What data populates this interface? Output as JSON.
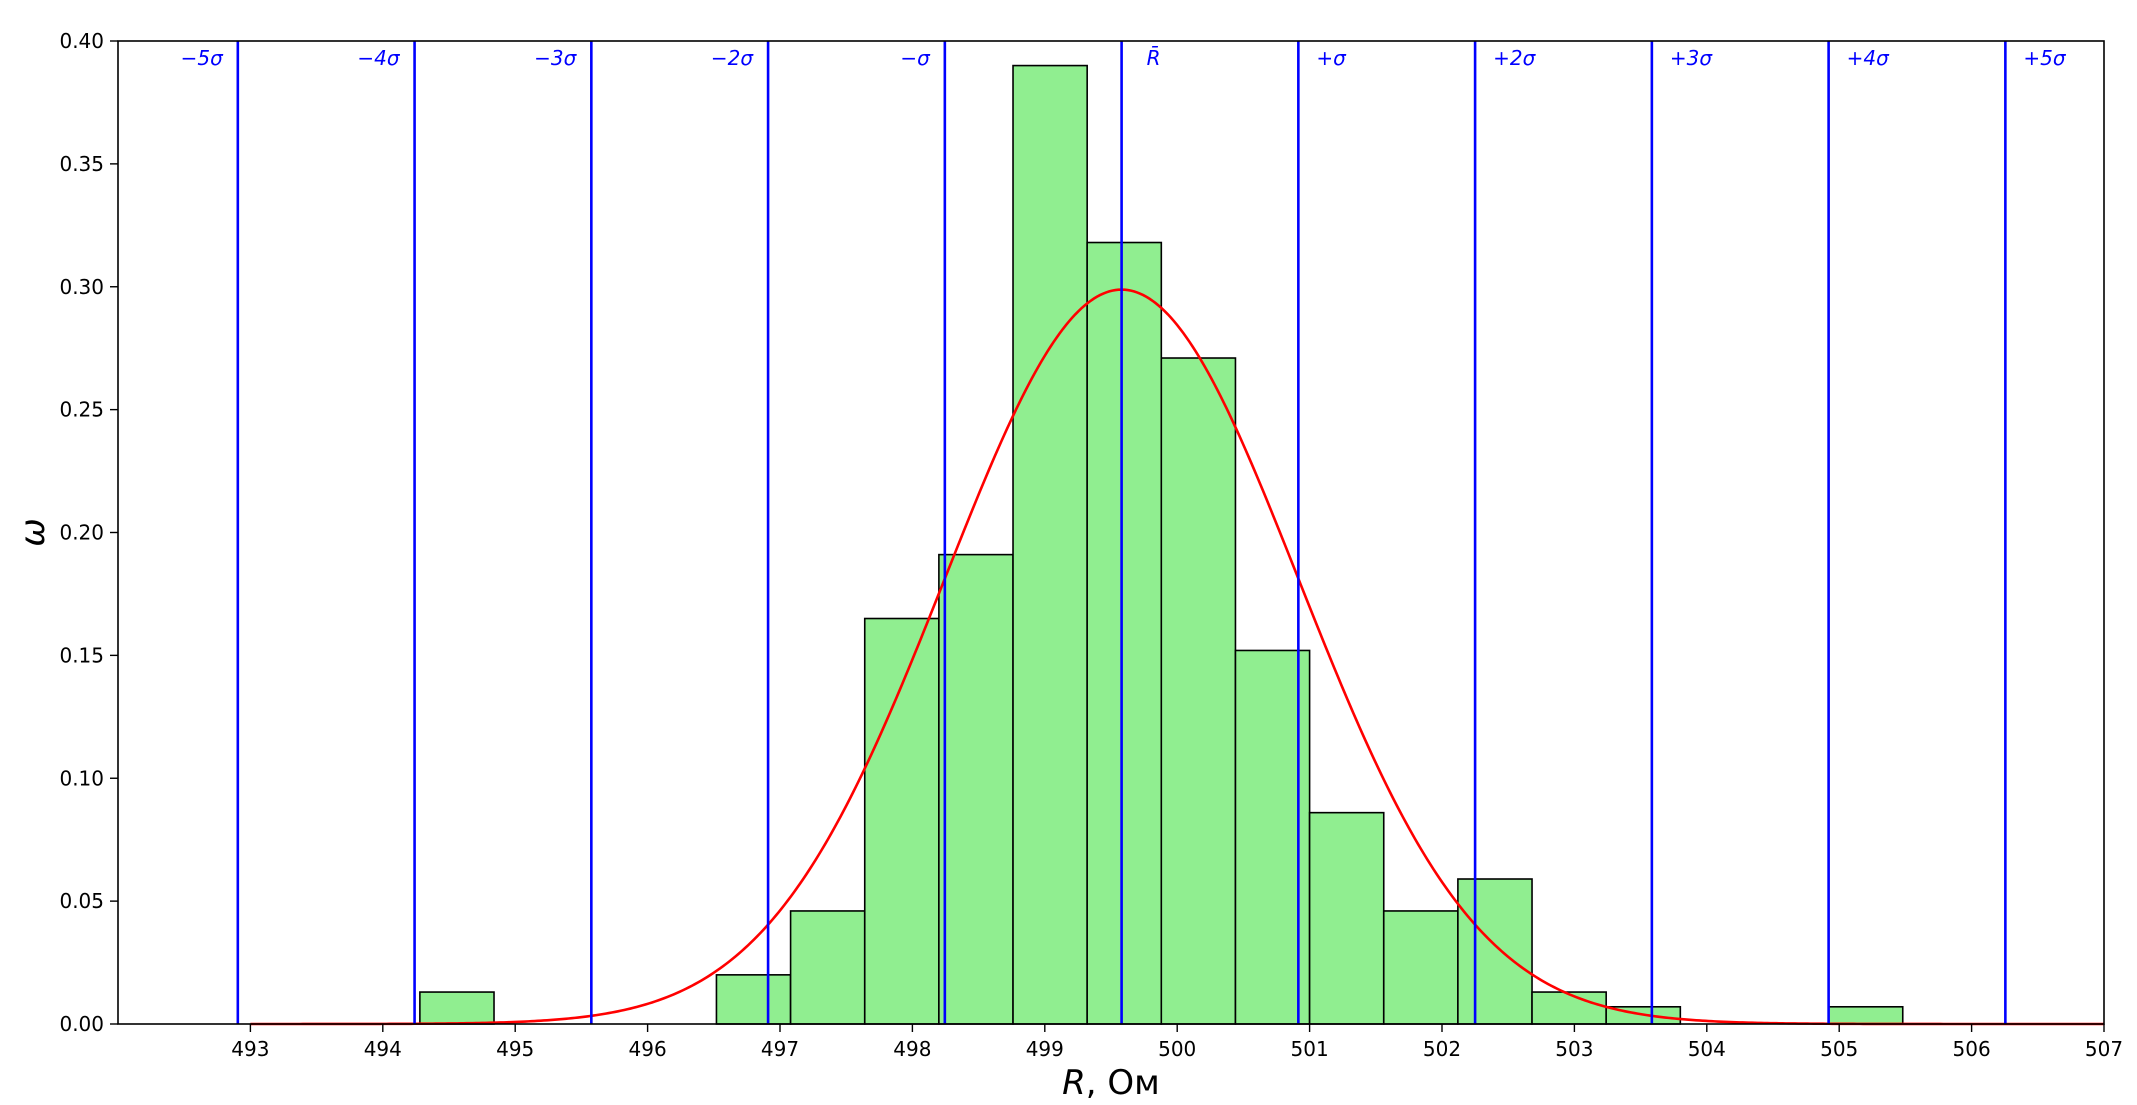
{
  "chart_data": {
    "type": "bar",
    "xlabel": "R, Ом",
    "ylabel": "ω",
    "xlim": [
      492,
      507
    ],
    "ylim": [
      0,
      0.4
    ],
    "grid": false,
    "x_ticks": [
      493,
      494,
      495,
      496,
      497,
      498,
      499,
      500,
      501,
      502,
      503,
      504,
      505,
      506,
      507
    ],
    "y_ticks": [
      "0.00",
      "0.05",
      "0.10",
      "0.15",
      "0.20",
      "0.25",
      "0.30",
      "0.35",
      "0.40"
    ],
    "histogram": {
      "bin_width": 0.56,
      "bins": [
        {
          "left": 494.28,
          "value": 0.013
        },
        {
          "left": 496.52,
          "value": 0.02
        },
        {
          "left": 497.08,
          "value": 0.046
        },
        {
          "left": 497.64,
          "value": 0.165
        },
        {
          "left": 498.2,
          "value": 0.191
        },
        {
          "left": 498.76,
          "value": 0.39
        },
        {
          "left": 499.32,
          "value": 0.318
        },
        {
          "left": 499.88,
          "value": 0.271
        },
        {
          "left": 500.44,
          "value": 0.152
        },
        {
          "left": 501.0,
          "value": 0.086
        },
        {
          "left": 501.56,
          "value": 0.046
        },
        {
          "left": 502.12,
          "value": 0.059
        },
        {
          "left": 502.68,
          "value": 0.013
        },
        {
          "left": 503.24,
          "value": 0.007
        },
        {
          "left": 504.92,
          "value": 0.007
        }
      ],
      "fill_color": "#90ee90",
      "edge_color": "#000000"
    },
    "normal_curve": {
      "mean": 499.58,
      "sigma": 1.335,
      "color": "#ff0000"
    },
    "sigma_lines": {
      "color": "#0000ff",
      "lines": [
        {
          "x": 492.905,
          "label": "−5σ"
        },
        {
          "x": 494.24,
          "label": "−4σ"
        },
        {
          "x": 495.575,
          "label": "−3σ"
        },
        {
          "x": 496.91,
          "label": "−2σ"
        },
        {
          "x": 498.245,
          "label": "−σ"
        },
        {
          "x": 499.58,
          "label": "R̄"
        },
        {
          "x": 500.915,
          "label": "+σ"
        },
        {
          "x": 502.25,
          "label": "+2σ"
        },
        {
          "x": 503.585,
          "label": "+3σ"
        },
        {
          "x": 504.92,
          "label": "+4σ"
        },
        {
          "x": 506.255,
          "label": "+5σ"
        }
      ]
    }
  }
}
